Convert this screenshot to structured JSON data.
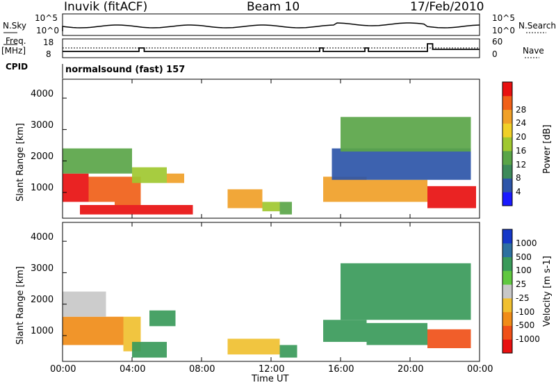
{
  "header": {
    "station": "Inuvik (fitACF)",
    "beam": "Beam 10",
    "date": "17/Feb/2010"
  },
  "param_panels": {
    "nsky_label": "N.Sky",
    "nsearch_label": "N.Search",
    "nsky_ticks": [
      "10^5",
      "10^0"
    ],
    "nsky_right_ticks": [
      "10^5",
      "10^0"
    ],
    "freq_label": "Freq.",
    "freq_unit": "[MHz]",
    "freq_ticks": [
      "18",
      "8"
    ],
    "nave_label": "Nave",
    "nave_ticks": [
      "60",
      "0"
    ],
    "cpid_label": "CPID",
    "cpid_value": "normalsound (fast) 157"
  },
  "axes": {
    "xlabel": "Time UT",
    "ylabel": "Slant Range [km]",
    "x_ticks": [
      "00:00",
      "04:00",
      "08:00",
      "12:00",
      "16:00",
      "20:00",
      "00:00"
    ],
    "y_ticks": [
      "1000",
      "2000",
      "3000",
      "4000"
    ]
  },
  "colorbars": {
    "power_label": "Power [dB]",
    "power_ticks": [
      "4",
      "8",
      "12",
      "16",
      "20",
      "24",
      "28"
    ],
    "power_colors": [
      "#1a1aff",
      "#2d55a8",
      "#3d8a5a",
      "#5aa548",
      "#a0c830",
      "#f0d028",
      "#f0a028",
      "#f06018",
      "#e81010"
    ],
    "velocity_label": "Velocity [m s-1]",
    "velocity_ticks": [
      "1000",
      "500",
      "100",
      "25",
      "-25",
      "-100",
      "-500",
      "-1000"
    ],
    "velocity_colors": [
      "#1538c8",
      "#2d70a0",
      "#3a9a5a",
      "#60c840",
      "#c8c8c8",
      "#f0c030",
      "#f08c18",
      "#f05018",
      "#e81010"
    ]
  },
  "chart_data": {
    "type": "heatmap",
    "title": "Inuvik (fitACF)  Beam 10  17/Feb/2010",
    "xlabel": "Time UT",
    "ylabel": "Slant Range [km]",
    "xlim": [
      0,
      24
    ],
    "ylim": [
      180,
      4600
    ],
    "x_unit": "hours UT",
    "panels": [
      {
        "quantity": "Power [dB]",
        "clim": [
          0,
          30
        ],
        "regions": [
          {
            "t": [
              0.0,
              1.5
            ],
            "r": [
              700,
              1600
            ],
            "val": 28
          },
          {
            "t": [
              1.5,
              3.0
            ],
            "r": [
              700,
              1500
            ],
            "val": 24
          },
          {
            "t": [
              3.0,
              4.5
            ],
            "r": [
              600,
              1500
            ],
            "val": 26
          },
          {
            "t": [
              1.0,
              7.5
            ],
            "r": [
              300,
              600
            ],
            "val": 28
          },
          {
            "t": [
              4.0,
              6.0
            ],
            "r": [
              1300,
              1800
            ],
            "val": 14
          },
          {
            "t": [
              6.0,
              7.0
            ],
            "r": [
              1300,
              1600
            ],
            "val": 20
          },
          {
            "t": [
              0.0,
              4.0
            ],
            "r": [
              1600,
              2400
            ],
            "val": 12
          },
          {
            "t": [
              9.5,
              11.5
            ],
            "r": [
              500,
              1100
            ],
            "val": 22
          },
          {
            "t": [
              11.5,
              12.5
            ],
            "r": [
              400,
              700
            ],
            "val": 16
          },
          {
            "t": [
              12.5,
              13.2
            ],
            "r": [
              300,
              700
            ],
            "val": 12
          },
          {
            "t": [
              15.0,
              17.5
            ],
            "r": [
              700,
              1500
            ],
            "val": 20
          },
          {
            "t": [
              17.5,
              21.0
            ],
            "r": [
              700,
              1400
            ],
            "val": 22
          },
          {
            "t": [
              21.0,
              23.8
            ],
            "r": [
              500,
              1200
            ],
            "val": 28
          },
          {
            "t": [
              15.5,
              23.5
            ],
            "r": [
              1400,
              2400
            ],
            "val": 6
          },
          {
            "t": [
              16.0,
              23.5
            ],
            "r": [
              2300,
              3400
            ],
            "val": 12
          }
        ]
      },
      {
        "quantity": "Velocity [m s-1]",
        "clim": [
          -1000,
          1000
        ],
        "regions": [
          {
            "t": [
              0.0,
              3.5
            ],
            "r": [
              700,
              1600
            ],
            "val": -300
          },
          {
            "t": [
              3.5,
              4.5
            ],
            "r": [
              500,
              1600
            ],
            "val": -100
          },
          {
            "t": [
              4.0,
              6.0
            ],
            "r": [
              300,
              800
            ],
            "val": 150
          },
          {
            "t": [
              0.0,
              2.5
            ],
            "r": [
              1600,
              2400
            ],
            "val": 0
          },
          {
            "t": [
              5.0,
              6.5
            ],
            "r": [
              1300,
              1800
            ],
            "val": 200
          },
          {
            "t": [
              9.5,
              12.5
            ],
            "r": [
              400,
              900
            ],
            "val": -100
          },
          {
            "t": [
              12.5,
              13.5
            ],
            "r": [
              300,
              700
            ],
            "val": 200
          },
          {
            "t": [
              15.0,
              17.5
            ],
            "r": [
              800,
              1500
            ],
            "val": 150
          },
          {
            "t": [
              17.5,
              21.0
            ],
            "r": [
              700,
              1400
            ],
            "val": 300
          },
          {
            "t": [
              21.0,
              23.5
            ],
            "r": [
              600,
              1200
            ],
            "val": -700
          },
          {
            "t": [
              16.0,
              23.5
            ],
            "r": [
              1500,
              3300
            ],
            "val": 100
          }
        ]
      }
    ]
  }
}
